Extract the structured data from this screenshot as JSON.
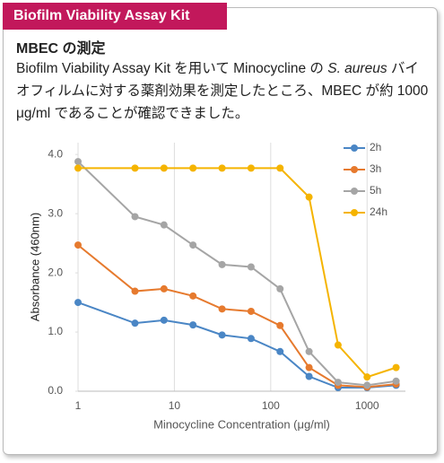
{
  "header": {
    "tag": "Biofilm Viability Assay Kit"
  },
  "section": {
    "title": "MBEC の測定",
    "body": [
      "Biofilm Viability Assay Kit を用いて Minocycline の ",
      "S. aureus",
      " バイオフィルムに対する薬剤効果を測定したところ、MBEC が約 1000 μg/ml であることが確認できました。"
    ]
  },
  "chart_data": {
    "type": "line",
    "xlabel": "Minocycline Concentration (μg/ml)",
    "ylabel": "Absorbance (460nm)",
    "log_x": true,
    "grid": "x",
    "legend": "top-right",
    "x": [
      1,
      3.9,
      7.8,
      15.6,
      31.25,
      62.5,
      125,
      250,
      500,
      1000,
      2000
    ],
    "xlim": [
      1,
      2500
    ],
    "xticks": [
      1,
      10,
      100,
      1000
    ],
    "ylim": [
      0,
      4.2
    ],
    "yticks": [
      {
        "value": 0,
        "label": "0.0"
      },
      {
        "value": 1,
        "label": "1.0"
      },
      {
        "value": 2,
        "label": "2.0"
      },
      {
        "value": 3,
        "label": "3.0"
      },
      {
        "value": 4,
        "label": "4.0"
      }
    ],
    "series": [
      {
        "name": "2h",
        "color": "#4a86c5",
        "values": [
          1.5,
          1.15,
          1.2,
          1.12,
          0.95,
          0.89,
          0.67,
          0.25,
          0.06,
          0.06,
          0.1
        ]
      },
      {
        "name": "3h",
        "color": "#e67a2e",
        "values": [
          2.47,
          1.69,
          1.73,
          1.61,
          1.39,
          1.35,
          1.11,
          0.4,
          0.1,
          0.07,
          0.12
        ]
      },
      {
        "name": "5h",
        "color": "#a5a5a5",
        "values": [
          3.88,
          2.95,
          2.81,
          2.47,
          2.14,
          2.1,
          1.73,
          0.67,
          0.15,
          0.1,
          0.17
        ]
      },
      {
        "name": "24h",
        "color": "#f5b400",
        "values": [
          3.77,
          3.77,
          3.77,
          3.77,
          3.77,
          3.77,
          3.77,
          3.28,
          0.78,
          0.24,
          0.4
        ]
      }
    ]
  }
}
